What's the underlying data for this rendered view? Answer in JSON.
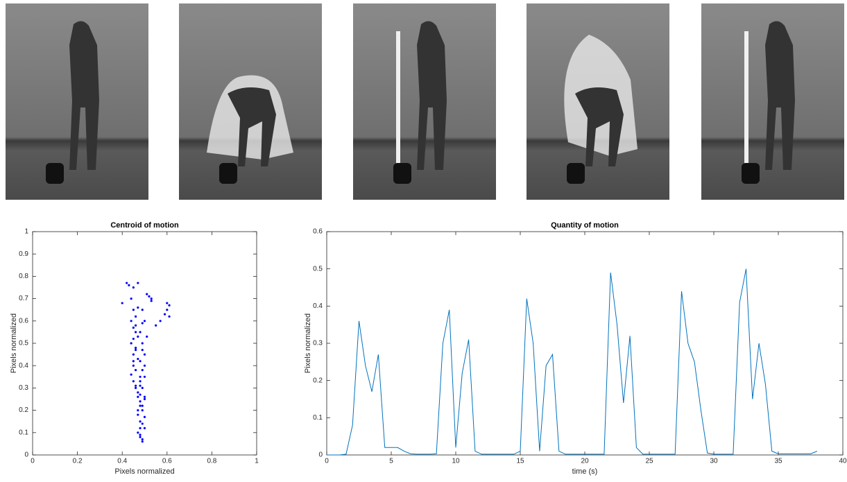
{
  "chart_data": [
    {
      "type": "scatter",
      "title": "Centroid of motion",
      "xlabel": "Pixels normalized",
      "ylabel": "Pixels normalized",
      "color": "#0000ff",
      "x": [
        0.42,
        0.43,
        0.45,
        0.47,
        0.44,
        0.45,
        0.46,
        0.44,
        0.45,
        0.46,
        0.45,
        0.44,
        0.46,
        0.45,
        0.47,
        0.45,
        0.46,
        0.44,
        0.45,
        0.46,
        0.47,
        0.45,
        0.46,
        0.48,
        0.47,
        0.46,
        0.47,
        0.48,
        0.47,
        0.46,
        0.48,
        0.47,
        0.48,
        0.49,
        0.48,
        0.47,
        0.49,
        0.48,
        0.5,
        0.49,
        0.48,
        0.5,
        0.49,
        0.48,
        0.5,
        0.49,
        0.48,
        0.49,
        0.5,
        0.51,
        0.49,
        0.5,
        0.48,
        0.49,
        0.5,
        0.49,
        0.48,
        0.49,
        0.5,
        0.49,
        0.53,
        0.51,
        0.52,
        0.53,
        0.55,
        0.57,
        0.59,
        0.6,
        0.61,
        0.6,
        0.61,
        0.4,
        0.47,
        0.48,
        0.5
      ],
      "values": [
        0.77,
        0.76,
        0.75,
        0.77,
        0.7,
        0.65,
        0.62,
        0.6,
        0.57,
        0.55,
        0.52,
        0.5,
        0.48,
        0.45,
        0.43,
        0.4,
        0.38,
        0.36,
        0.33,
        0.3,
        0.28,
        0.42,
        0.47,
        0.35,
        0.53,
        0.58,
        0.26,
        0.24,
        0.2,
        0.31,
        0.15,
        0.1,
        0.08,
        0.06,
        0.12,
        0.18,
        0.22,
        0.27,
        0.25,
        0.3,
        0.33,
        0.35,
        0.38,
        0.42,
        0.45,
        0.5,
        0.55,
        0.59,
        0.6,
        0.53,
        0.47,
        0.4,
        0.31,
        0.2,
        0.17,
        0.14,
        0.09,
        0.07,
        0.12,
        0.65,
        0.7,
        0.72,
        0.71,
        0.69,
        0.58,
        0.6,
        0.63,
        0.68,
        0.67,
        0.65,
        0.62,
        0.68,
        0.66,
        0.22,
        0.26
      ],
      "xlim": [
        0,
        1
      ],
      "xticks": [
        0,
        0.2,
        0.4,
        0.6,
        0.8,
        1
      ],
      "ylim": [
        0,
        1
      ],
      "yticks": [
        0,
        0.1,
        0.2,
        0.3,
        0.4,
        0.5,
        0.6,
        0.7,
        0.8,
        0.9,
        1
      ]
    },
    {
      "type": "line",
      "title": "Quantity of motion",
      "xlabel": "time (s)",
      "ylabel": "Pixels normalized",
      "color": "#0072bd",
      "x": [
        0,
        0.5,
        1,
        1.5,
        2,
        2.5,
        3,
        3.5,
        4,
        4.5,
        5,
        5.5,
        6,
        6.5,
        7,
        7.5,
        8,
        8.5,
        9,
        9.5,
        10,
        10.5,
        11,
        11.5,
        12,
        12.5,
        13,
        13.5,
        14,
        14.5,
        15,
        15.5,
        16,
        16.5,
        17,
        17.5,
        18,
        18.5,
        19,
        19.5,
        20,
        20.5,
        21,
        21.5,
        22,
        22.5,
        23,
        23.5,
        24,
        24.5,
        25,
        25.5,
        26,
        26.5,
        27,
        27.5,
        28,
        28.5,
        29,
        29.5,
        30,
        30.5,
        31,
        31.5,
        32,
        32.5,
        33,
        33.5,
        34,
        34.5,
        35,
        35.5,
        36,
        36.5,
        37,
        37.5,
        38
      ],
      "values": [
        0,
        0,
        0,
        0.002,
        0.08,
        0.36,
        0.24,
        0.17,
        0.27,
        0.02,
        0.02,
        0.02,
        0.01,
        0.003,
        0.002,
        0.002,
        0.002,
        0.003,
        0.3,
        0.39,
        0.02,
        0.22,
        0.31,
        0.01,
        0.002,
        0.002,
        0.002,
        0.002,
        0.002,
        0.002,
        0.01,
        0.42,
        0.3,
        0.01,
        0.24,
        0.27,
        0.01,
        0.002,
        0.002,
        0.002,
        0.002,
        0.002,
        0.002,
        0.002,
        0.49,
        0.35,
        0.14,
        0.32,
        0.02,
        0.002,
        0.002,
        0.002,
        0.002,
        0.002,
        0.002,
        0.44,
        0.3,
        0.25,
        0.12,
        0.005,
        0.002,
        0.002,
        0.002,
        0.002,
        0.41,
        0.5,
        0.15,
        0.3,
        0.19,
        0.01,
        0.003,
        0.003,
        0.003,
        0.003,
        0.003,
        0.003,
        0.01
      ],
      "xlim": [
        0,
        40
      ],
      "xticks": [
        0,
        5,
        10,
        15,
        20,
        25,
        30,
        35,
        40
      ],
      "ylim": [
        0,
        0.6
      ],
      "yticks": [
        0,
        0.1,
        0.2,
        0.3,
        0.4,
        0.5,
        0.6
      ]
    }
  ]
}
